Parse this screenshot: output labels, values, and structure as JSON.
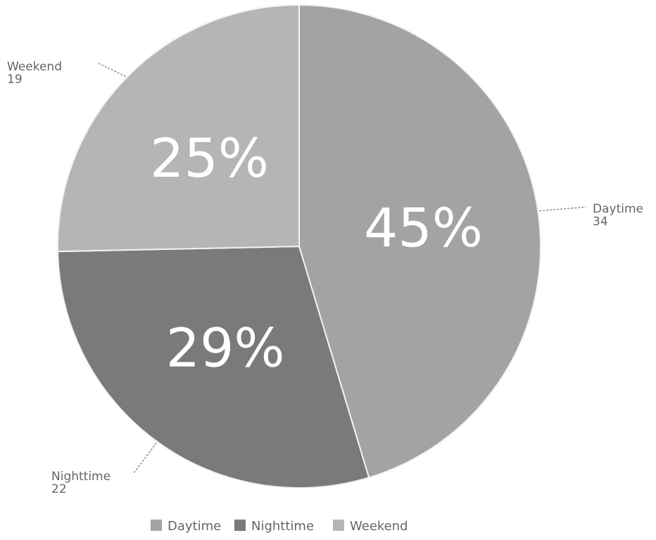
{
  "chart_data": {
    "type": "pie",
    "categories": [
      "Daytime",
      "Nighttime",
      "Weekend"
    ],
    "values": [
      34,
      22,
      19
    ],
    "percent_labels": [
      "45%",
      "29%",
      "25%"
    ],
    "outer_labels": [
      {
        "name": "Daytime",
        "value": "34"
      },
      {
        "name": "Nighttime",
        "value": "22"
      },
      {
        "name": "Weekend",
        "value": "19"
      }
    ],
    "colors": [
      "#a3a3a3",
      "#7a7a7a",
      "#b5b5b5"
    ],
    "legend": {
      "placement": "bottom",
      "entries": [
        "Daytime",
        "Nighttime",
        "Weekend"
      ]
    }
  }
}
